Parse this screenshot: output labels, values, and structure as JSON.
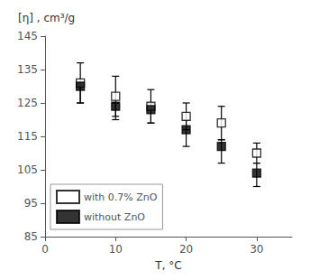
{
  "chart_data": {
    "type": "scatter",
    "xlabel": "T, °C",
    "ylabel": "[η] , cm³/g",
    "xlim": [
      0,
      35
    ],
    "ylim": [
      85,
      145
    ],
    "xticks": [
      0,
      10,
      20,
      30
    ],
    "yticks": [
      85,
      95,
      105,
      115,
      125,
      135,
      145
    ],
    "x": [
      5,
      10,
      15,
      20,
      25,
      30
    ],
    "series": [
      {
        "name": "with 0.7% ZnO",
        "color": "#000000",
        "marker": "square-open",
        "values": [
          131,
          127,
          124,
          121,
          119,
          110
        ],
        "yerr_upper": [
          6,
          6,
          5,
          4,
          5,
          3
        ],
        "yerr_lower": [
          6,
          6,
          5,
          4,
          5,
          3
        ]
      },
      {
        "name": "without ZnO",
        "color": "#000000",
        "marker": "square",
        "values": [
          130,
          124,
          123,
          117,
          112,
          104
        ],
        "yerr_upper": [
          1,
          1,
          2,
          3,
          2,
          3
        ],
        "yerr_lower": [
          5,
          4,
          4,
          5,
          5,
          4
        ]
      }
    ],
    "grid": false,
    "legend": "lower left"
  }
}
